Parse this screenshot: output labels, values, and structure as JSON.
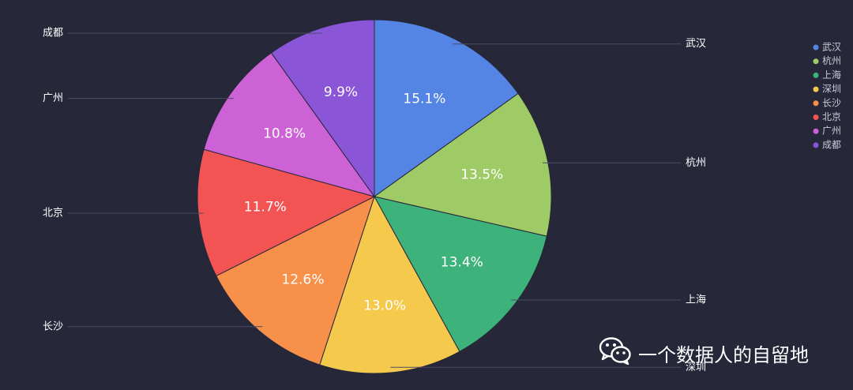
{
  "chart_data": {
    "type": "pie",
    "categories": [
      "武汉",
      "杭州",
      "上海",
      "深圳",
      "长沙",
      "北京",
      "广州",
      "成都"
    ],
    "values": [
      15.1,
      13.5,
      13.4,
      13.0,
      12.6,
      11.7,
      10.8,
      9.9
    ],
    "value_labels": [
      "15.1%",
      "13.5%",
      "13.4%",
      "13.0%",
      "12.6%",
      "11.7%",
      "10.8%",
      "9.9%"
    ],
    "colors": [
      "#5484e4",
      "#9ecb66",
      "#3db27b",
      "#f5c94c",
      "#f7914a",
      "#f25454",
      "#cd62d7",
      "#8a55d6"
    ],
    "legend_placement": "right",
    "grid": false
  },
  "watermark": {
    "text": "一个数据人的自留地",
    "icon": "wechat-icon"
  }
}
